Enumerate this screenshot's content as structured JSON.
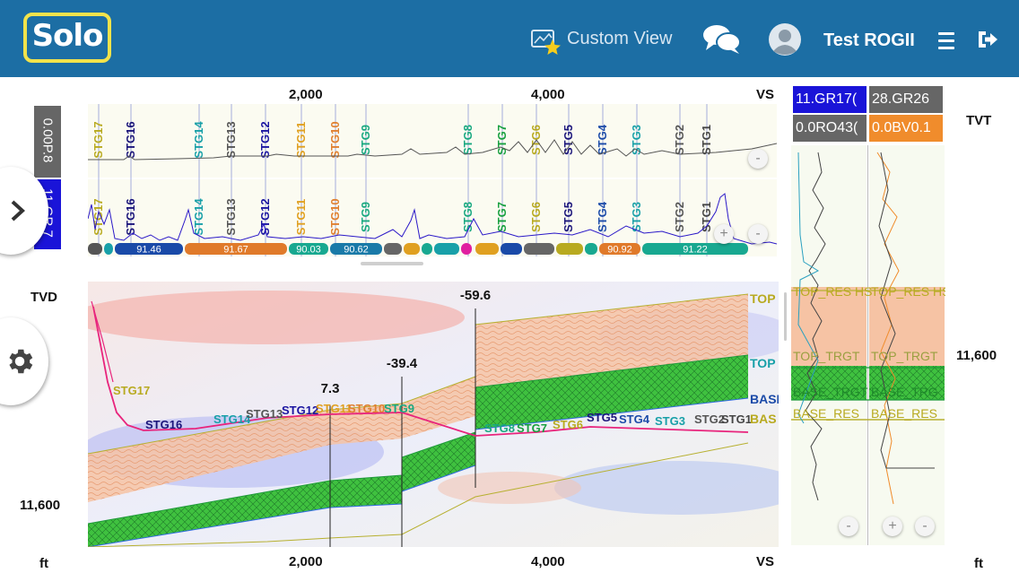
{
  "header": {
    "logo_text": "Solo",
    "custom_view_label": "Custom View",
    "user_name": "Test ROGII"
  },
  "axes": {
    "vs_ticks": [
      "2,000",
      "4,000"
    ],
    "vs_label": "VS",
    "tvd_label": "TVD",
    "tvt_label": "TVT",
    "depth_left": "11,600",
    "depth_right": "11,600",
    "unit": "ft"
  },
  "log_track": {
    "vertical_label_top": "0.00P.8",
    "vertical_label_bottom": "11.GR.7"
  },
  "stages_top": [
    "STG17",
    "STG16",
    "STG14",
    "STG13",
    "STG12",
    "STG11",
    "STG10",
    "STG9",
    "STG8",
    "STG7",
    "STG6",
    "STG5",
    "STG4",
    "STG3",
    "STG2",
    "STG1"
  ],
  "stages_section": [
    "STG17",
    "STG16",
    "STG14",
    "STG13",
    "STG12",
    "STG11",
    "STG10",
    "STG9",
    "STG8",
    "STG7",
    "STG6",
    "STG5",
    "STG4",
    "STG3",
    "STG2",
    "STG1"
  ],
  "segments": [
    "91.46",
    "91.67",
    "90.03",
    "90.62",
    "90.92",
    "91.22"
  ],
  "offsets": [
    "7.3",
    "-39.4",
    "-59.6"
  ],
  "formations": [
    "TOP",
    "TOP",
    "BASE",
    "BAS"
  ],
  "right_tracks": {
    "gr_header": "11.GR17(",
    "ro_header": "0.0RO43(",
    "gr2_header": "28.GR26",
    "bv_header": "0.0BV0.1",
    "markers": [
      "TOP_RES HS",
      "TOP_RES HS",
      "TOP_TRGT",
      "TOP_TRGT",
      "BASE_TRGT",
      "BASE_TRG",
      "BASE_RES",
      "BASE_RES"
    ]
  },
  "colors": {
    "header_bg": "#1c6ea4",
    "logo_border": "#f2e34b",
    "gr_header": "#1a14d8",
    "gr2_header": "#666666",
    "ro_header": "#666666",
    "bv_header": "#f08c2c"
  }
}
